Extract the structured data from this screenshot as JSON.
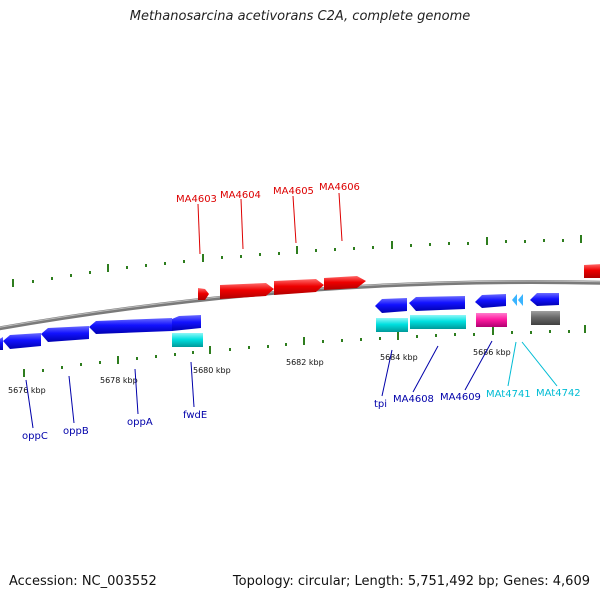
{
  "title": "Methanosarcina acetivorans C2A, complete genome",
  "footer": {
    "accession": "Accession: NC_003552",
    "topology": "Topology: circular; Length: 5,751,492 bp; Genes: 4,609"
  },
  "colors": {
    "forward_cds": "#ff0000",
    "reverse_cds": "#1a1aff",
    "rna": "#00e5e5",
    "other": "#ff2aa8",
    "misc": "#707070",
    "ticks": "#2e7d1e",
    "backbone": "#808080",
    "forward_label": "#dd0000",
    "reverse_label": "#0000aa",
    "rna_label": "#00bcd4"
  },
  "scale": {
    "tick_labels": [
      "5676 kbp",
      "5678 kbp",
      "5680 kbp",
      "5682 kbp",
      "5684 kbp",
      "5686 kbp"
    ]
  },
  "genes_forward": [
    {
      "name": "MA4603",
      "label": "MA4603"
    },
    {
      "name": "MA4604",
      "label": "MA4604"
    },
    {
      "name": "MA4605",
      "label": "MA4605"
    },
    {
      "name": "MA4606",
      "label": "MA4606"
    }
  ],
  "genes_reverse": [
    {
      "name": "oppC",
      "label": "oppC"
    },
    {
      "name": "oppB",
      "label": "oppB"
    },
    {
      "name": "oppA",
      "label": "oppA"
    },
    {
      "name": "fwdE",
      "label": "fwdE"
    },
    {
      "name": "tpi",
      "label": "tpi"
    },
    {
      "name": "MA4608",
      "label": "MA4608"
    },
    {
      "name": "MA4609",
      "label": "MA4609"
    }
  ],
  "genes_rna": [
    {
      "name": "MAt4741",
      "label": "MAt4741"
    },
    {
      "name": "MAt4742",
      "label": "MAt4742"
    }
  ]
}
